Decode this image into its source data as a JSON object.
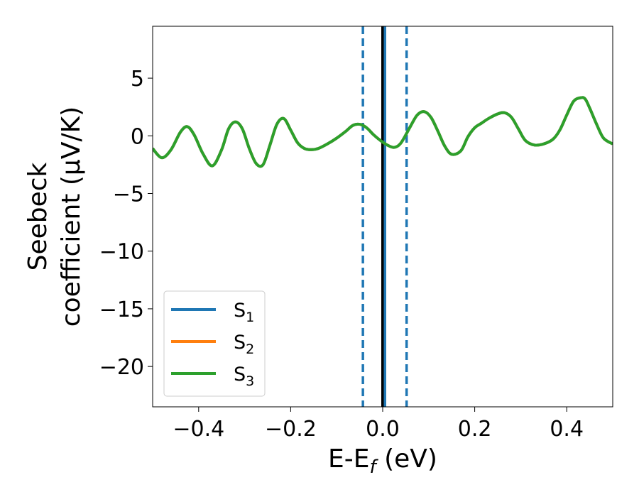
{
  "chart_data": {
    "type": "line",
    "xlabel": "E-E",
    "xlabel_sub": "f",
    "xlabel_unit": "(eV)",
    "ylabel_line1": "Seebeck",
    "ylabel_line2": "coefficient  (μV/K)",
    "xlim": [
      -0.5,
      0.5
    ],
    "ylim": [
      -23.5,
      9.5
    ],
    "x_ticks": [
      -0.4,
      -0.2,
      0.0,
      0.2,
      0.4
    ],
    "x_tick_labels": [
      "−0.4",
      "−0.2",
      "0.0",
      "0.2",
      "0.4"
    ],
    "y_ticks": [
      5,
      0,
      -5,
      -10,
      -15,
      -20
    ],
    "y_tick_labels": [
      "5",
      "0",
      "−5",
      "−10",
      "−15",
      "−20"
    ],
    "grid": false,
    "legend_position": "lower-left",
    "vlines": [
      {
        "x": -0.043,
        "style": "dashed",
        "color": "#1f77b4"
      },
      {
        "x": 0.0,
        "style": "solid",
        "color": "#000000"
      },
      {
        "x": 0.052,
        "style": "dashed",
        "color": "#1f77b4"
      },
      {
        "x": 0.005,
        "style": "solid",
        "color": "#1f77b4"
      }
    ],
    "series": [
      {
        "name": "S",
        "name_sub": "1",
        "color": "#1f77b4",
        "x": [
          -0.5,
          -0.48,
          -0.46,
          -0.44,
          -0.425,
          -0.41,
          -0.39,
          -0.37,
          -0.35,
          -0.335,
          -0.32,
          -0.305,
          -0.29,
          -0.275,
          -0.26,
          -0.245,
          -0.23,
          -0.215,
          -0.2,
          -0.185,
          -0.17,
          -0.155,
          -0.14,
          -0.12,
          -0.1,
          -0.08,
          -0.065,
          -0.05,
          -0.035,
          -0.02,
          -0.005,
          0.01,
          0.025,
          0.04,
          0.06,
          0.075,
          0.09,
          0.105,
          0.12,
          0.135,
          0.15,
          0.17,
          0.185,
          0.2,
          0.215,
          0.23,
          0.25,
          0.265,
          0.28,
          0.295,
          0.31,
          0.33,
          0.35,
          0.37,
          0.385,
          0.4,
          0.415,
          0.43,
          0.44,
          0.45,
          0.465,
          0.48,
          0.5
        ],
        "y": [
          -1.1,
          -1.9,
          -1.2,
          0.3,
          0.8,
          0.1,
          -1.6,
          -2.6,
          -1.2,
          0.6,
          1.2,
          0.6,
          -1.1,
          -2.4,
          -2.5,
          -0.8,
          1.0,
          1.5,
          0.5,
          -0.6,
          -1.1,
          -1.2,
          -1.1,
          -0.7,
          -0.2,
          0.4,
          0.9,
          1.0,
          0.7,
          0.1,
          -0.4,
          -0.8,
          -1.0,
          -0.6,
          0.8,
          1.8,
          2.1,
          1.6,
          0.4,
          -0.9,
          -1.6,
          -1.3,
          -0.1,
          0.7,
          1.1,
          1.5,
          1.9,
          2.0,
          1.6,
          0.6,
          -0.4,
          -0.8,
          -0.7,
          -0.3,
          0.5,
          1.8,
          3.0,
          3.3,
          3.2,
          2.4,
          1.0,
          -0.2,
          -0.7
        ]
      },
      {
        "name": "S",
        "name_sub": "2",
        "color": "#ff7f0e",
        "x": [
          -0.5,
          -0.48,
          -0.46,
          -0.44,
          -0.425,
          -0.41,
          -0.39,
          -0.37,
          -0.35,
          -0.335,
          -0.32,
          -0.305,
          -0.29,
          -0.275,
          -0.26,
          -0.245,
          -0.23,
          -0.215,
          -0.2,
          -0.185,
          -0.17,
          -0.155,
          -0.14,
          -0.12,
          -0.1,
          -0.08,
          -0.065,
          -0.05,
          -0.035,
          -0.02,
          -0.005,
          0.01,
          0.025,
          0.04,
          0.06,
          0.075,
          0.09,
          0.105,
          0.12,
          0.135,
          0.15,
          0.17,
          0.185,
          0.2,
          0.215,
          0.23,
          0.25,
          0.265,
          0.28,
          0.295,
          0.31,
          0.33,
          0.35,
          0.37,
          0.385,
          0.4,
          0.415,
          0.43,
          0.44,
          0.45,
          0.465,
          0.48,
          0.5
        ],
        "y": [
          -1.1,
          -1.9,
          -1.2,
          0.3,
          0.8,
          0.1,
          -1.6,
          -2.6,
          -1.2,
          0.6,
          1.2,
          0.6,
          -1.1,
          -2.4,
          -2.5,
          -0.8,
          1.0,
          1.5,
          0.5,
          -0.6,
          -1.1,
          -1.2,
          -1.1,
          -0.7,
          -0.2,
          0.4,
          0.9,
          1.0,
          0.7,
          0.1,
          -0.4,
          -0.8,
          -1.0,
          -0.6,
          0.8,
          1.8,
          2.1,
          1.6,
          0.4,
          -0.9,
          -1.6,
          -1.3,
          -0.1,
          0.7,
          1.1,
          1.5,
          1.9,
          2.0,
          1.6,
          0.6,
          -0.4,
          -0.8,
          -0.7,
          -0.3,
          0.5,
          1.8,
          3.0,
          3.3,
          3.2,
          2.4,
          1.0,
          -0.2,
          -0.7
        ]
      },
      {
        "name": "S",
        "name_sub": "3",
        "color": "#2ca02c",
        "x": [
          -0.5,
          -0.48,
          -0.46,
          -0.44,
          -0.425,
          -0.41,
          -0.39,
          -0.37,
          -0.35,
          -0.335,
          -0.32,
          -0.305,
          -0.29,
          -0.275,
          -0.26,
          -0.245,
          -0.23,
          -0.215,
          -0.2,
          -0.185,
          -0.17,
          -0.155,
          -0.14,
          -0.12,
          -0.1,
          -0.08,
          -0.065,
          -0.05,
          -0.035,
          -0.02,
          -0.005,
          0.01,
          0.025,
          0.04,
          0.06,
          0.075,
          0.09,
          0.105,
          0.12,
          0.135,
          0.15,
          0.17,
          0.185,
          0.2,
          0.215,
          0.23,
          0.25,
          0.265,
          0.28,
          0.295,
          0.31,
          0.33,
          0.35,
          0.37,
          0.385,
          0.4,
          0.415,
          0.43,
          0.44,
          0.45,
          0.465,
          0.48,
          0.5
        ],
        "y": [
          -1.1,
          -1.9,
          -1.2,
          0.3,
          0.8,
          0.1,
          -1.6,
          -2.6,
          -1.2,
          0.6,
          1.2,
          0.6,
          -1.1,
          -2.4,
          -2.5,
          -0.8,
          1.0,
          1.5,
          0.5,
          -0.6,
          -1.1,
          -1.2,
          -1.1,
          -0.7,
          -0.2,
          0.4,
          0.9,
          1.0,
          0.7,
          0.1,
          -0.4,
          -0.8,
          -1.0,
          -0.6,
          0.8,
          1.8,
          2.1,
          1.6,
          0.4,
          -0.9,
          -1.6,
          -1.3,
          -0.1,
          0.7,
          1.1,
          1.5,
          1.9,
          2.0,
          1.6,
          0.6,
          -0.4,
          -0.8,
          -0.7,
          -0.3,
          0.5,
          1.8,
          3.0,
          3.3,
          3.2,
          2.4,
          1.0,
          -0.2,
          -0.7
        ]
      }
    ]
  }
}
